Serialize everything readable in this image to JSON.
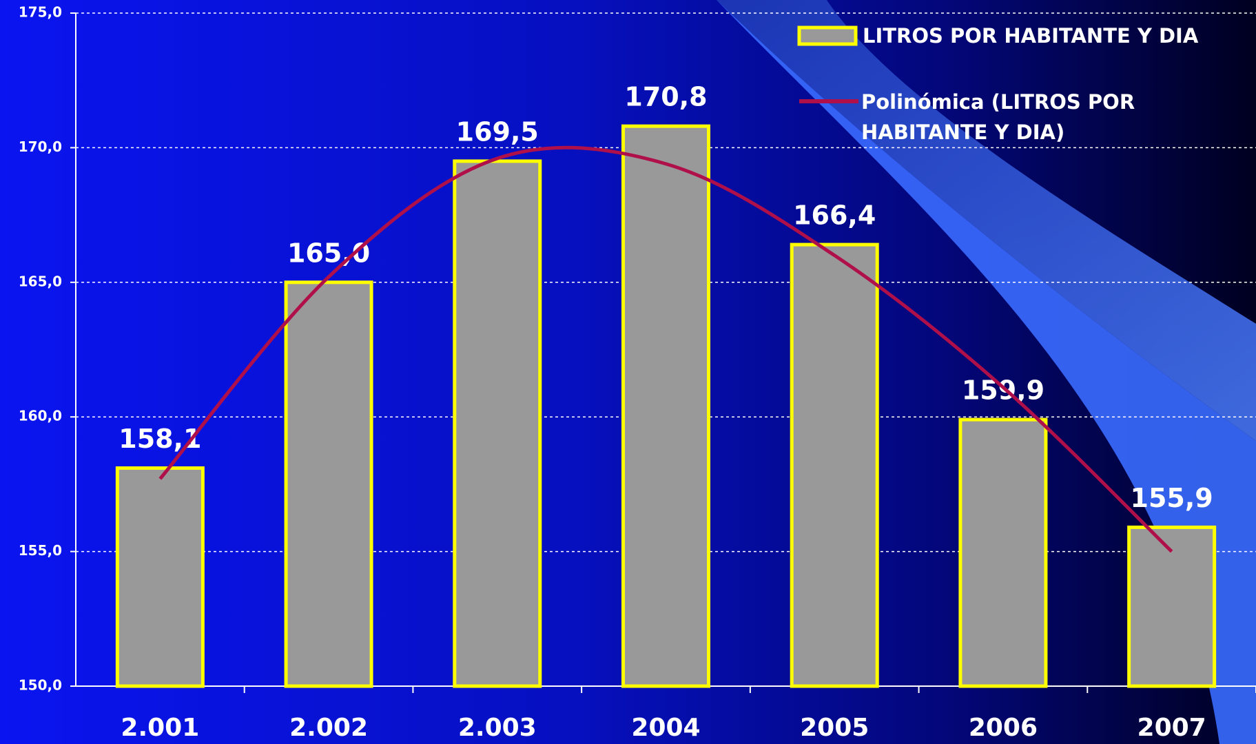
{
  "chart_data": {
    "type": "bar",
    "categories": [
      "2.001",
      "2.002",
      "2.003",
      "2004",
      "2005",
      "2006",
      "2007"
    ],
    "series": [
      {
        "name": "LITROS POR HABITANTE Y DIA",
        "type": "bar",
        "color": "#999999",
        "edge_color": "#ffff00",
        "values": [
          158.1,
          165.0,
          169.5,
          170.8,
          166.4,
          159.9,
          155.9
        ],
        "value_labels": [
          "158,1",
          "165,0",
          "169,5",
          "170,8",
          "166,4",
          "159,9",
          "155,9"
        ]
      },
      {
        "name": "Polinómica (LITROS POR HABITANTE Y DIA)",
        "type": "line",
        "color": "#b0104a",
        "values": [
          157.7,
          165.2,
          169.6,
          169.4,
          166.0,
          161.1,
          155.0
        ]
      }
    ],
    "ylim": [
      150,
      175
    ],
    "yticks": [
      {
        "value": 150,
        "label": "150,0"
      },
      {
        "value": 155,
        "label": "155,0"
      },
      {
        "value": 160,
        "label": "160,0"
      },
      {
        "value": 165,
        "label": "165,0"
      },
      {
        "value": 170,
        "label": "170,0"
      },
      {
        "value": 175,
        "label": "175,0"
      }
    ],
    "grid": true,
    "legend": "upper right"
  }
}
